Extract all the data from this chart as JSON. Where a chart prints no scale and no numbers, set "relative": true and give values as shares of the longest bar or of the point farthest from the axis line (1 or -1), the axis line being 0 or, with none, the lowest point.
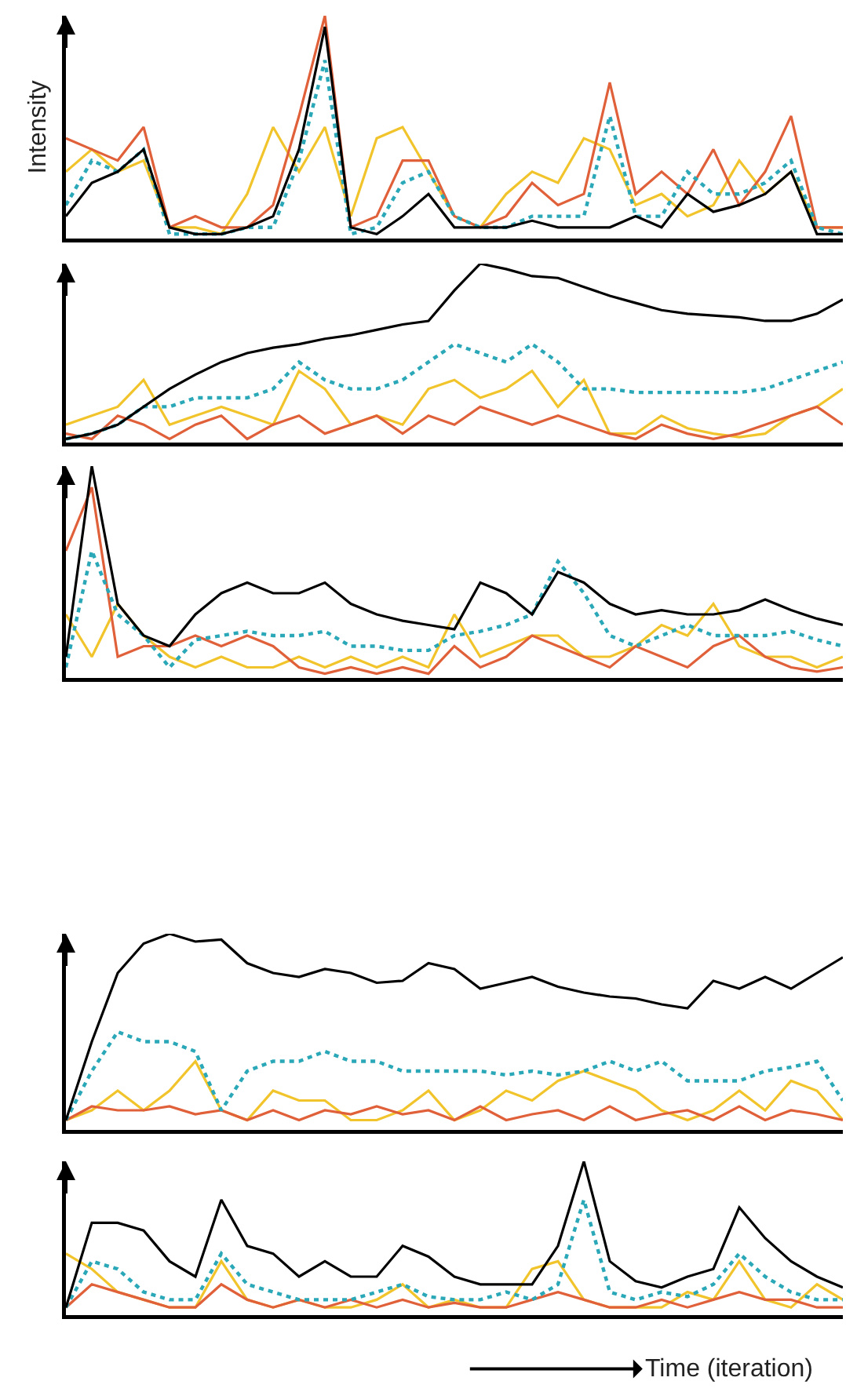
{
  "chart_data": [
    {
      "type": "line",
      "relative": true,
      "ylabel": "Intensity",
      "categories": [
        null,
        null,
        null,
        null,
        null,
        null,
        null,
        null,
        null,
        null,
        null,
        null,
        null,
        null,
        null,
        null,
        null,
        null,
        null,
        null,
        null,
        null,
        null,
        null,
        null,
        null,
        null,
        null,
        null,
        null,
        null
      ],
      "series": [
        {
          "color": "#f2c42c",
          "values": [
            0.3,
            0.4,
            0.3,
            0.35,
            0.05,
            0.05,
            0.02,
            0.2,
            0.5,
            0.3,
            0.5,
            0.1,
            0.45,
            0.5,
            0.3,
            0.1,
            0.05,
            0.2,
            0.3,
            0.25,
            0.45,
            0.4,
            0.15,
            0.2,
            0.1,
            0.15,
            0.35,
            0.2,
            0.3,
            0.05,
            0.05
          ]
        },
        {
          "color": "#e0603a",
          "values": [
            0.45,
            0.4,
            0.35,
            0.5,
            0.05,
            0.1,
            0.05,
            0.05,
            0.15,
            0.55,
            1,
            0.05,
            0.1,
            0.35,
            0.35,
            0.1,
            0.05,
            0.1,
            0.25,
            0.15,
            0.2,
            0.7,
            0.2,
            0.3,
            0.2,
            0.4,
            0.15,
            0.3,
            0.55,
            0.05,
            0.05
          ]
        },
        {
          "color": "#2aa8b8",
          "line_style": "dotted",
          "values": [
            0.15,
            0.35,
            0.3,
            0.4,
            0.02,
            0.02,
            0.02,
            0.05,
            0.05,
            0.35,
            0.8,
            0.02,
            0.05,
            0.25,
            0.3,
            0.1,
            0.05,
            0.05,
            0.1,
            0.1,
            0.1,
            0.55,
            0.1,
            0.1,
            0.3,
            0.2,
            0.2,
            0.25,
            0.35,
            0.05,
            0.02
          ]
        },
        {
          "color": "#000000",
          "values": [
            0.1,
            0.25,
            0.3,
            0.4,
            0.05,
            0.02,
            0.02,
            0.05,
            0.1,
            0.4,
            0.95,
            0.05,
            0.02,
            0.1,
            0.2,
            0.05,
            0.05,
            0.05,
            0.08,
            0.05,
            0.05,
            0.05,
            0.1,
            0.05,
            0.2,
            0.12,
            0.15,
            0.2,
            0.3,
            0.02,
            0.02
          ]
        }
      ]
    },
    {
      "type": "line",
      "relative": true,
      "categories": [
        null,
        null,
        null,
        null,
        null,
        null,
        null,
        null,
        null,
        null,
        null,
        null,
        null,
        null,
        null,
        null,
        null,
        null,
        null,
        null,
        null,
        null,
        null,
        null,
        null,
        null,
        null,
        null,
        null,
        null,
        null
      ],
      "series": [
        {
          "color": "#f2c42c",
          "values": [
            0.1,
            0.15,
            0.2,
            0.35,
            0.1,
            0.15,
            0.2,
            0.15,
            0.1,
            0.4,
            0.3,
            0.1,
            0.15,
            0.1,
            0.3,
            0.35,
            0.25,
            0.3,
            0.4,
            0.2,
            0.35,
            0.05,
            0.05,
            0.15,
            0.08,
            0.05,
            0.03,
            0.05,
            0.15,
            0.2,
            0.3
          ]
        },
        {
          "color": "#e0603a",
          "values": [
            0.05,
            0.02,
            0.15,
            0.1,
            0.02,
            0.1,
            0.15,
            0.02,
            0.1,
            0.15,
            0.05,
            0.1,
            0.15,
            0.05,
            0.15,
            0.1,
            0.2,
            0.15,
            0.1,
            0.15,
            0.1,
            0.05,
            0.02,
            0.1,
            0.05,
            0.02,
            0.05,
            0.1,
            0.15,
            0.2,
            0.1
          ]
        },
        {
          "color": "#2aa8b8",
          "line_style": "dotted",
          "values": [
            0.02,
            0.05,
            0.1,
            0.2,
            0.2,
            0.25,
            0.25,
            0.25,
            0.3,
            0.45,
            0.35,
            0.3,
            0.3,
            0.35,
            0.45,
            0.55,
            0.5,
            0.45,
            0.55,
            0.45,
            0.3,
            0.3,
            0.28,
            0.28,
            0.28,
            0.28,
            0.28,
            0.3,
            0.35,
            0.4,
            0.45
          ]
        },
        {
          "color": "#000000",
          "values": [
            0.02,
            0.05,
            0.1,
            0.2,
            0.3,
            0.38,
            0.45,
            0.5,
            0.53,
            0.55,
            0.58,
            0.6,
            0.63,
            0.66,
            0.68,
            0.85,
            1,
            0.97,
            0.93,
            0.92,
            0.87,
            0.82,
            0.78,
            0.74,
            0.72,
            0.71,
            0.7,
            0.68,
            0.68,
            0.72,
            0.8
          ]
        }
      ]
    },
    {
      "type": "line",
      "relative": true,
      "categories": [
        null,
        null,
        null,
        null,
        null,
        null,
        null,
        null,
        null,
        null,
        null,
        null,
        null,
        null,
        null,
        null,
        null,
        null,
        null,
        null,
        null,
        null,
        null,
        null,
        null,
        null,
        null,
        null,
        null,
        null,
        null
      ],
      "series": [
        {
          "color": "#f2c42c",
          "values": [
            0.3,
            0.1,
            0.35,
            0.2,
            0.1,
            0.05,
            0.1,
            0.05,
            0.05,
            0.1,
            0.05,
            0.1,
            0.05,
            0.1,
            0.05,
            0.3,
            0.1,
            0.15,
            0.2,
            0.2,
            0.1,
            0.1,
            0.15,
            0.25,
            0.2,
            0.35,
            0.15,
            0.1,
            0.1,
            0.05,
            0.1
          ]
        },
        {
          "color": "#e0603a",
          "values": [
            0.6,
            0.9,
            0.1,
            0.15,
            0.15,
            0.2,
            0.15,
            0.2,
            0.15,
            0.05,
            0.02,
            0.05,
            0.02,
            0.05,
            0.02,
            0.15,
            0.05,
            0.1,
            0.2,
            0.15,
            0.1,
            0.05,
            0.15,
            0.1,
            0.05,
            0.15,
            0.2,
            0.1,
            0.05,
            0.03,
            0.05
          ]
        },
        {
          "color": "#2aa8b8",
          "line_style": "dotted",
          "values": [
            0.05,
            0.6,
            0.3,
            0.2,
            0.05,
            0.18,
            0.2,
            0.22,
            0.2,
            0.2,
            0.22,
            0.15,
            0.15,
            0.13,
            0.13,
            0.2,
            0.22,
            0.25,
            0.3,
            0.55,
            0.4,
            0.2,
            0.15,
            0.2,
            0.25,
            0.2,
            0.2,
            0.2,
            0.22,
            0.18,
            0.15
          ]
        },
        {
          "color": "#000000",
          "values": [
            0.1,
            1,
            0.35,
            0.2,
            0.15,
            0.3,
            0.4,
            0.45,
            0.4,
            0.4,
            0.45,
            0.35,
            0.3,
            0.27,
            0.25,
            0.23,
            0.45,
            0.4,
            0.3,
            0.5,
            0.45,
            0.35,
            0.3,
            0.32,
            0.3,
            0.3,
            0.32,
            0.37,
            0.32,
            0.28,
            0.25
          ]
        }
      ]
    },
    {
      "type": "line",
      "relative": true,
      "categories": [
        null,
        null,
        null,
        null,
        null,
        null,
        null,
        null,
        null,
        null,
        null,
        null,
        null,
        null,
        null,
        null,
        null,
        null,
        null,
        null,
        null,
        null,
        null,
        null,
        null,
        null,
        null,
        null,
        null,
        null,
        null
      ],
      "series": [
        {
          "color": "#f2c42c",
          "values": [
            0.05,
            0.1,
            0.2,
            0.1,
            0.2,
            0.35,
            0.1,
            0.05,
            0.2,
            0.15,
            0.15,
            0.05,
            0.05,
            0.1,
            0.2,
            0.05,
            0.1,
            0.2,
            0.15,
            0.25,
            0.3,
            0.25,
            0.2,
            0.1,
            0.05,
            0.1,
            0.2,
            0.1,
            0.25,
            0.2,
            0.05
          ]
        },
        {
          "color": "#e0603a",
          "values": [
            0.05,
            0.12,
            0.1,
            0.1,
            0.12,
            0.08,
            0.1,
            0.05,
            0.1,
            0.05,
            0.1,
            0.08,
            0.12,
            0.08,
            0.1,
            0.05,
            0.12,
            0.05,
            0.08,
            0.1,
            0.05,
            0.12,
            0.05,
            0.08,
            0.1,
            0.05,
            0.12,
            0.05,
            0.1,
            0.08,
            0.05
          ]
        },
        {
          "color": "#2aa8b8",
          "line_style": "dotted",
          "values": [
            0.05,
            0.3,
            0.5,
            0.45,
            0.45,
            0.4,
            0.1,
            0.3,
            0.35,
            0.35,
            0.4,
            0.35,
            0.35,
            0.3,
            0.3,
            0.3,
            0.3,
            0.28,
            0.3,
            0.28,
            0.3,
            0.35,
            0.3,
            0.35,
            0.25,
            0.25,
            0.25,
            0.3,
            0.32,
            0.35,
            0.15
          ]
        },
        {
          "color": "#000000",
          "values": [
            0.05,
            0.45,
            0.8,
            0.95,
            1,
            0.96,
            0.97,
            0.85,
            0.8,
            0.78,
            0.82,
            0.8,
            0.75,
            0.76,
            0.85,
            0.82,
            0.72,
            0.75,
            0.78,
            0.73,
            0.7,
            0.68,
            0.67,
            0.64,
            0.62,
            0.76,
            0.72,
            0.78,
            0.72,
            0.8,
            0.88
          ]
        }
      ]
    },
    {
      "type": "line",
      "relative": true,
      "xlabel": "Time (iteration)",
      "categories": [
        null,
        null,
        null,
        null,
        null,
        null,
        null,
        null,
        null,
        null,
        null,
        null,
        null,
        null,
        null,
        null,
        null,
        null,
        null,
        null,
        null,
        null,
        null,
        null,
        null,
        null,
        null,
        null,
        null,
        null,
        null
      ],
      "series": [
        {
          "color": "#f2c42c",
          "values": [
            0.4,
            0.3,
            0.15,
            0.1,
            0.05,
            0.05,
            0.35,
            0.1,
            0.05,
            0.1,
            0.05,
            0.05,
            0.1,
            0.2,
            0.05,
            0.1,
            0.05,
            0.05,
            0.3,
            0.35,
            0.1,
            0.05,
            0.05,
            0.05,
            0.15,
            0.1,
            0.35,
            0.1,
            0.05,
            0.2,
            0.1
          ]
        },
        {
          "color": "#e0603a",
          "values": [
            0.05,
            0.2,
            0.15,
            0.1,
            0.05,
            0.05,
            0.2,
            0.1,
            0.05,
            0.1,
            0.05,
            0.1,
            0.05,
            0.1,
            0.05,
            0.08,
            0.05,
            0.05,
            0.1,
            0.15,
            0.1,
            0.05,
            0.05,
            0.1,
            0.05,
            0.1,
            0.15,
            0.1,
            0.1,
            0.05,
            0.05
          ]
        },
        {
          "color": "#2aa8b8",
          "line_style": "dotted",
          "values": [
            0.05,
            0.35,
            0.3,
            0.15,
            0.1,
            0.1,
            0.4,
            0.2,
            0.15,
            0.1,
            0.1,
            0.1,
            0.15,
            0.2,
            0.12,
            0.1,
            0.1,
            0.15,
            0.1,
            0.2,
            0.75,
            0.15,
            0.1,
            0.15,
            0.12,
            0.2,
            0.4,
            0.25,
            0.15,
            0.1,
            0.1
          ]
        },
        {
          "color": "#000000",
          "values": [
            0.05,
            0.6,
            0.6,
            0.55,
            0.35,
            0.25,
            0.75,
            0.45,
            0.4,
            0.25,
            0.35,
            0.25,
            0.25,
            0.45,
            0.38,
            0.25,
            0.2,
            0.2,
            0.2,
            0.45,
            1,
            0.35,
            0.22,
            0.18,
            0.25,
            0.3,
            0.7,
            0.5,
            0.35,
            0.25,
            0.18
          ]
        }
      ]
    }
  ]
}
